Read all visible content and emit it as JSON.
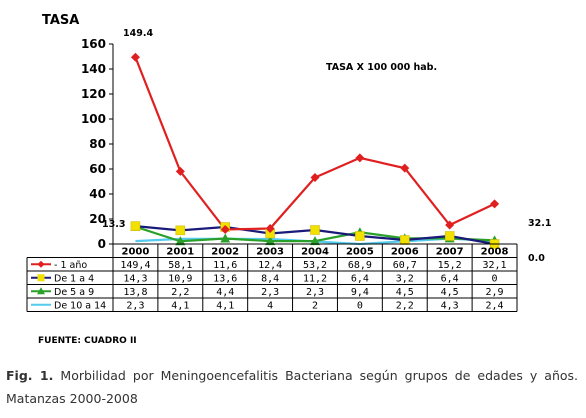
{
  "chart_data": {
    "type": "line",
    "ylabel": "TASA",
    "rate_note": "TASA X 100 000 hab.",
    "source": "FUENTE: CUADRO II",
    "ylim": [
      0,
      160
    ],
    "yticks": [
      0,
      20,
      40,
      60,
      80,
      100,
      120,
      140,
      160
    ],
    "categories": [
      "2000",
      "2001",
      "2002",
      "2003",
      "2004",
      "2005",
      "2006",
      "2007",
      "2008"
    ],
    "series": [
      {
        "name": "- 1 año",
        "color": "#e02020",
        "marker": "diamond",
        "values": [
          149.4,
          58.1,
          11.6,
          12.4,
          53.2,
          68.9,
          60.7,
          15.2,
          32.1
        ],
        "labels": [
          "149,4",
          "58,1",
          "11,6",
          "12,4",
          "53,2",
          "68,9",
          "60,7",
          "15,2",
          "32,1"
        ]
      },
      {
        "name": "De 1 a 4",
        "color": "#1a1a7a",
        "marker": "square",
        "marker_color": "#f2e000",
        "values": [
          14.3,
          10.9,
          13.6,
          8.4,
          11.2,
          6.4,
          3.2,
          6.4,
          0
        ],
        "labels": [
          "14,3",
          "10,9",
          "13,6",
          "8,4",
          "11,2",
          "6,4",
          "3,2",
          "6,4",
          "0"
        ]
      },
      {
        "name": "De 5 a 9",
        "color": "#2aa02a",
        "marker": "triangle",
        "values": [
          13.8,
          2.2,
          4.4,
          2.3,
          2.3,
          9.4,
          4.5,
          4.5,
          2.9
        ],
        "labels": [
          "13,8",
          "2,2",
          "4,4",
          "2,3",
          "2,3",
          "9,4",
          "4,5",
          "4,5",
          "2,9"
        ]
      },
      {
        "name": "De 10 a 14",
        "color": "#55ccee",
        "marker": "none",
        "values": [
          2.3,
          4.1,
          4.1,
          4,
          2,
          0,
          2.2,
          4.3,
          2.4
        ],
        "labels": [
          "2,3",
          "4,1",
          "4,1",
          "4",
          "2",
          "0",
          "2,2",
          "4,3",
          "2,4"
        ]
      }
    ],
    "annotations": [
      "149.4",
      "13.3",
      "32.1",
      "0.0"
    ]
  },
  "caption": {
    "label": "Fig. 1.",
    "text": "Morbilidad por Meningoencefalitis Bacteriana según grupos de edades y años. Matanzas 2000-2008"
  }
}
